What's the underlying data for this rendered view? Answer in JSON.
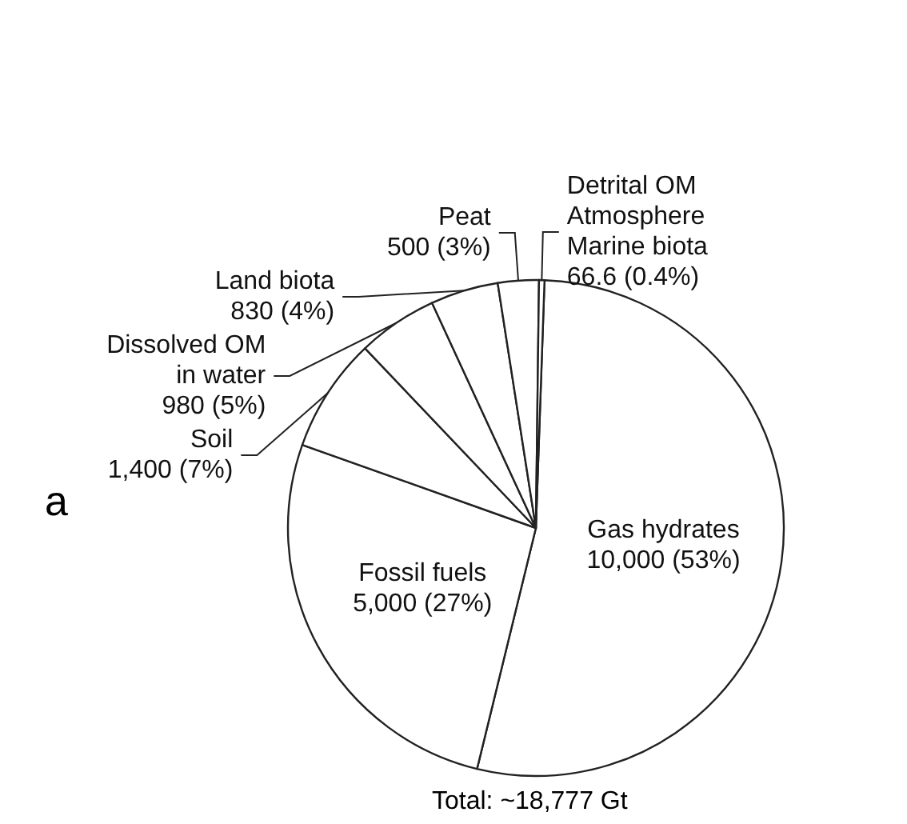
{
  "chart_data": {
    "type": "pie",
    "categories": [
      "Gas hydrates",
      "Fossil fuels",
      "Soil",
      "Dissolved OM\nin water",
      "Land biota",
      "Peat",
      "Detrital OM\nAtmosphere\nMarine biota"
    ],
    "values": [
      10000,
      5000,
      1400,
      980,
      830,
      500,
      66.6
    ],
    "value_labels": [
      "10,000 (53%)",
      "5,000 (27%)",
      "1,400 (7%)",
      "980 (5%)",
      "830 (4%)",
      "500 (3%)",
      "66.6 (0.4%)"
    ],
    "colors": [
      "#ffffff",
      "#ffffff",
      "#ffffff",
      "#ffffff",
      "#ffffff",
      "#ffffff",
      "#ffffff"
    ],
    "annotations": [
      "a",
      "Total: ~18,777 Gt"
    ],
    "legend": false
  }
}
